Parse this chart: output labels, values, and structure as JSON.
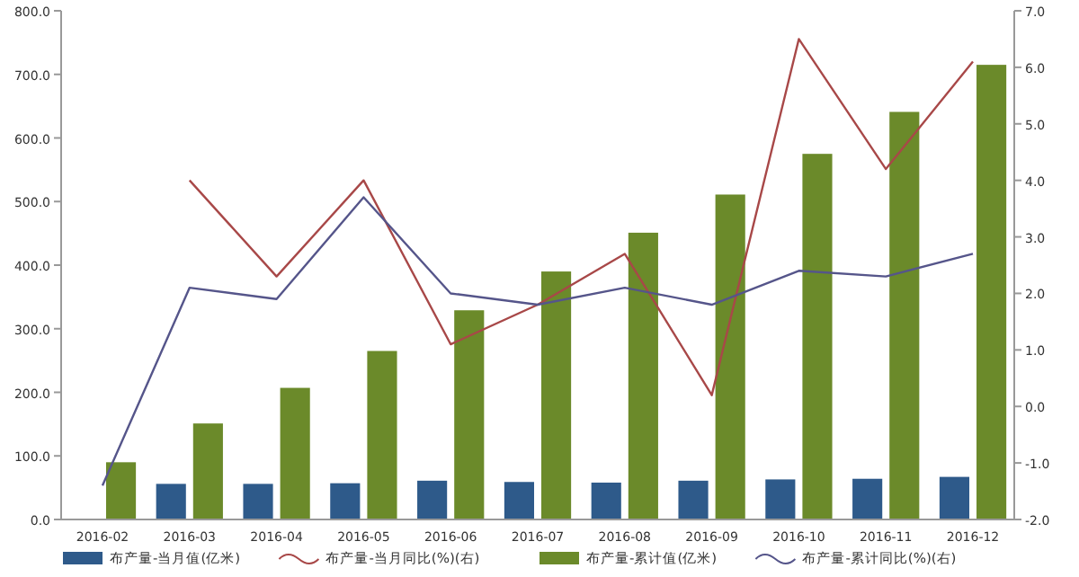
{
  "chart_data": {
    "type": "bar",
    "categories": [
      "2016-02",
      "2016-03",
      "2016-04",
      "2016-05",
      "2016-06",
      "2016-07",
      "2016-08",
      "2016-09",
      "2016-10",
      "2016-11",
      "2016-12"
    ],
    "series": [
      {
        "name": "布产量-当月值(亿米)",
        "color": "#2e5a8a",
        "values": [
          null,
          56,
          56,
          57,
          61,
          59,
          58,
          61,
          63,
          64,
          67
        ]
      },
      {
        "name": "布产量-当月同比(%)(右)",
        "type": "line",
        "axis": "y2",
        "color": "#a84848",
        "values": [
          null,
          4.0,
          2.3,
          4.0,
          1.1,
          1.8,
          2.7,
          0.2,
          6.5,
          4.2,
          6.1
        ]
      },
      {
        "name": "布产量-累计值(亿米)",
        "color": "#6b8a2a",
        "values": [
          90,
          151,
          207,
          265,
          329,
          390,
          451,
          511,
          575,
          641,
          715
        ]
      },
      {
        "name": "布产量-累计同比(%)(右)",
        "type": "line",
        "axis": "y2",
        "color": "#55558a",
        "values": [
          -1.4,
          2.1,
          1.9,
          3.7,
          2.0,
          1.8,
          2.1,
          1.8,
          2.4,
          2.3,
          2.7
        ]
      }
    ],
    "ylim": [
      0,
      800
    ],
    "yticks": [
      {
        "value": 0,
        "label": "0.0"
      },
      {
        "value": 100,
        "label": "100.0"
      },
      {
        "value": 200,
        "label": "200.0"
      },
      {
        "value": 300,
        "label": "300.0"
      },
      {
        "value": 400,
        "label": "400.0"
      },
      {
        "value": 500,
        "label": "500.0"
      },
      {
        "value": 600,
        "label": "600.0"
      },
      {
        "value": 700,
        "label": "700.0"
      },
      {
        "value": 800,
        "label": "800.0"
      }
    ],
    "y2lim": [
      -2,
      7
    ],
    "y2ticks": [
      {
        "value": -2,
        "label": "-2.0"
      },
      {
        "value": -1,
        "label": "-1.0"
      },
      {
        "value": 0,
        "label": "0.0"
      },
      {
        "value": 1,
        "label": "1.0"
      },
      {
        "value": 2,
        "label": "2.0"
      },
      {
        "value": 3,
        "label": "3.0"
      },
      {
        "value": 4,
        "label": "4.0"
      },
      {
        "value": 5,
        "label": "5.0"
      },
      {
        "value": 6,
        "label": "6.0"
      },
      {
        "value": 7,
        "label": "7.0"
      }
    ],
    "grid": false,
    "legend": "bottom",
    "marker": "none"
  }
}
